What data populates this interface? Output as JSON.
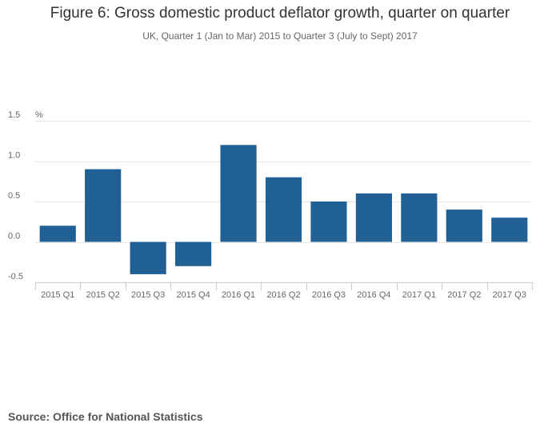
{
  "chart_data": {
    "type": "bar",
    "title": "Figure 6: Gross domestic product deflator growth, quarter on quarter",
    "subtitle": "UK, Quarter 1 (Jan to Mar) 2015 to Quarter 3 (July to Sept) 2017",
    "ylabel": "%",
    "xlabel": "",
    "ylim": [
      -0.5,
      1.5
    ],
    "yticks": [
      1.5,
      1.0,
      0.5,
      0.0,
      -0.5
    ],
    "ytick_labels": [
      "1.5",
      "1.0",
      "0.5",
      "0.0",
      "-0.5"
    ],
    "grid": true,
    "legend": "none",
    "categories": [
      "2015 Q1",
      "2015 Q2",
      "2015 Q3",
      "2015 Q4",
      "2016 Q1",
      "2016 Q2",
      "2016 Q3",
      "2016 Q4",
      "2017 Q1",
      "2017 Q2",
      "2017 Q3"
    ],
    "values": [
      0.2,
      0.9,
      -0.4,
      -0.3,
      1.2,
      0.8,
      0.5,
      0.6,
      0.6,
      0.4,
      0.3
    ],
    "bar_color": "#206095",
    "grid_color": "#e6e6e6",
    "axis_color": "#cccccc"
  },
  "source": "Source: Office for National Statistics"
}
